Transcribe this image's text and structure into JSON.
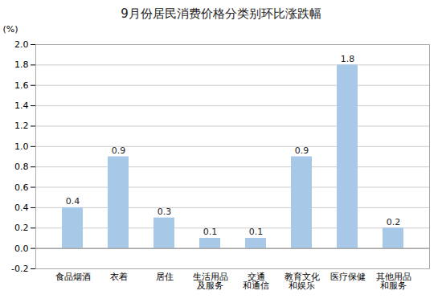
{
  "chart_data": {
    "type": "bar",
    "title": "9月份居民消费价格分类别环比涨跌幅",
    "y_label": "(%)",
    "categories": [
      "食品烟酒",
      "衣着",
      "居住",
      "生活用品\n及服务",
      "交通\n和通信",
      "教育文化\n和娱乐",
      "医疗保健",
      "其他用品\n和服务"
    ],
    "values": [
      0.4,
      0.9,
      0.3,
      0.1,
      0.1,
      0.9,
      1.8,
      0.2
    ],
    "color": "#A8C8E8",
    "ylim": [
      -0.2,
      2.0
    ],
    "yticks": [
      -0.2,
      {
        "value": 0.0,
        "label": "0.0"
      },
      0.2,
      0.4,
      0.6,
      0.8,
      {
        "value": 1.0,
        "label": "1.0"
      },
      1.2,
      1.4,
      1.6,
      1.8,
      {
        "value": 2.0,
        "label": "2.0"
      }
    ],
    "grid": true,
    "data_labels": true
  }
}
